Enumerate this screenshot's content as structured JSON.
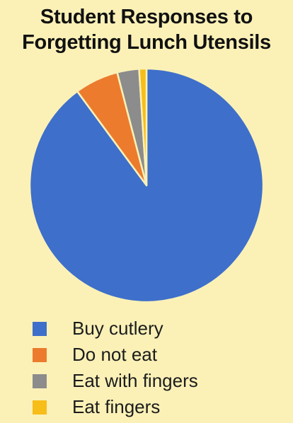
{
  "chart_data": {
    "type": "pie",
    "title": [
      "Student Responses to",
      "Forgetting Lunch Utensils"
    ],
    "slices": [
      {
        "label": "Buy cutlery",
        "value": 89,
        "color": "#3e6fca"
      },
      {
        "label": "Do not eat",
        "value": 6,
        "color": "#ec7b2e"
      },
      {
        "label": "Eat with fingers",
        "value": 3,
        "color": "#8c8c8c"
      },
      {
        "label": "Eat fingers",
        "value": 1,
        "color": "#f7bd18"
      }
    ],
    "legend_position": "bottom-left"
  }
}
